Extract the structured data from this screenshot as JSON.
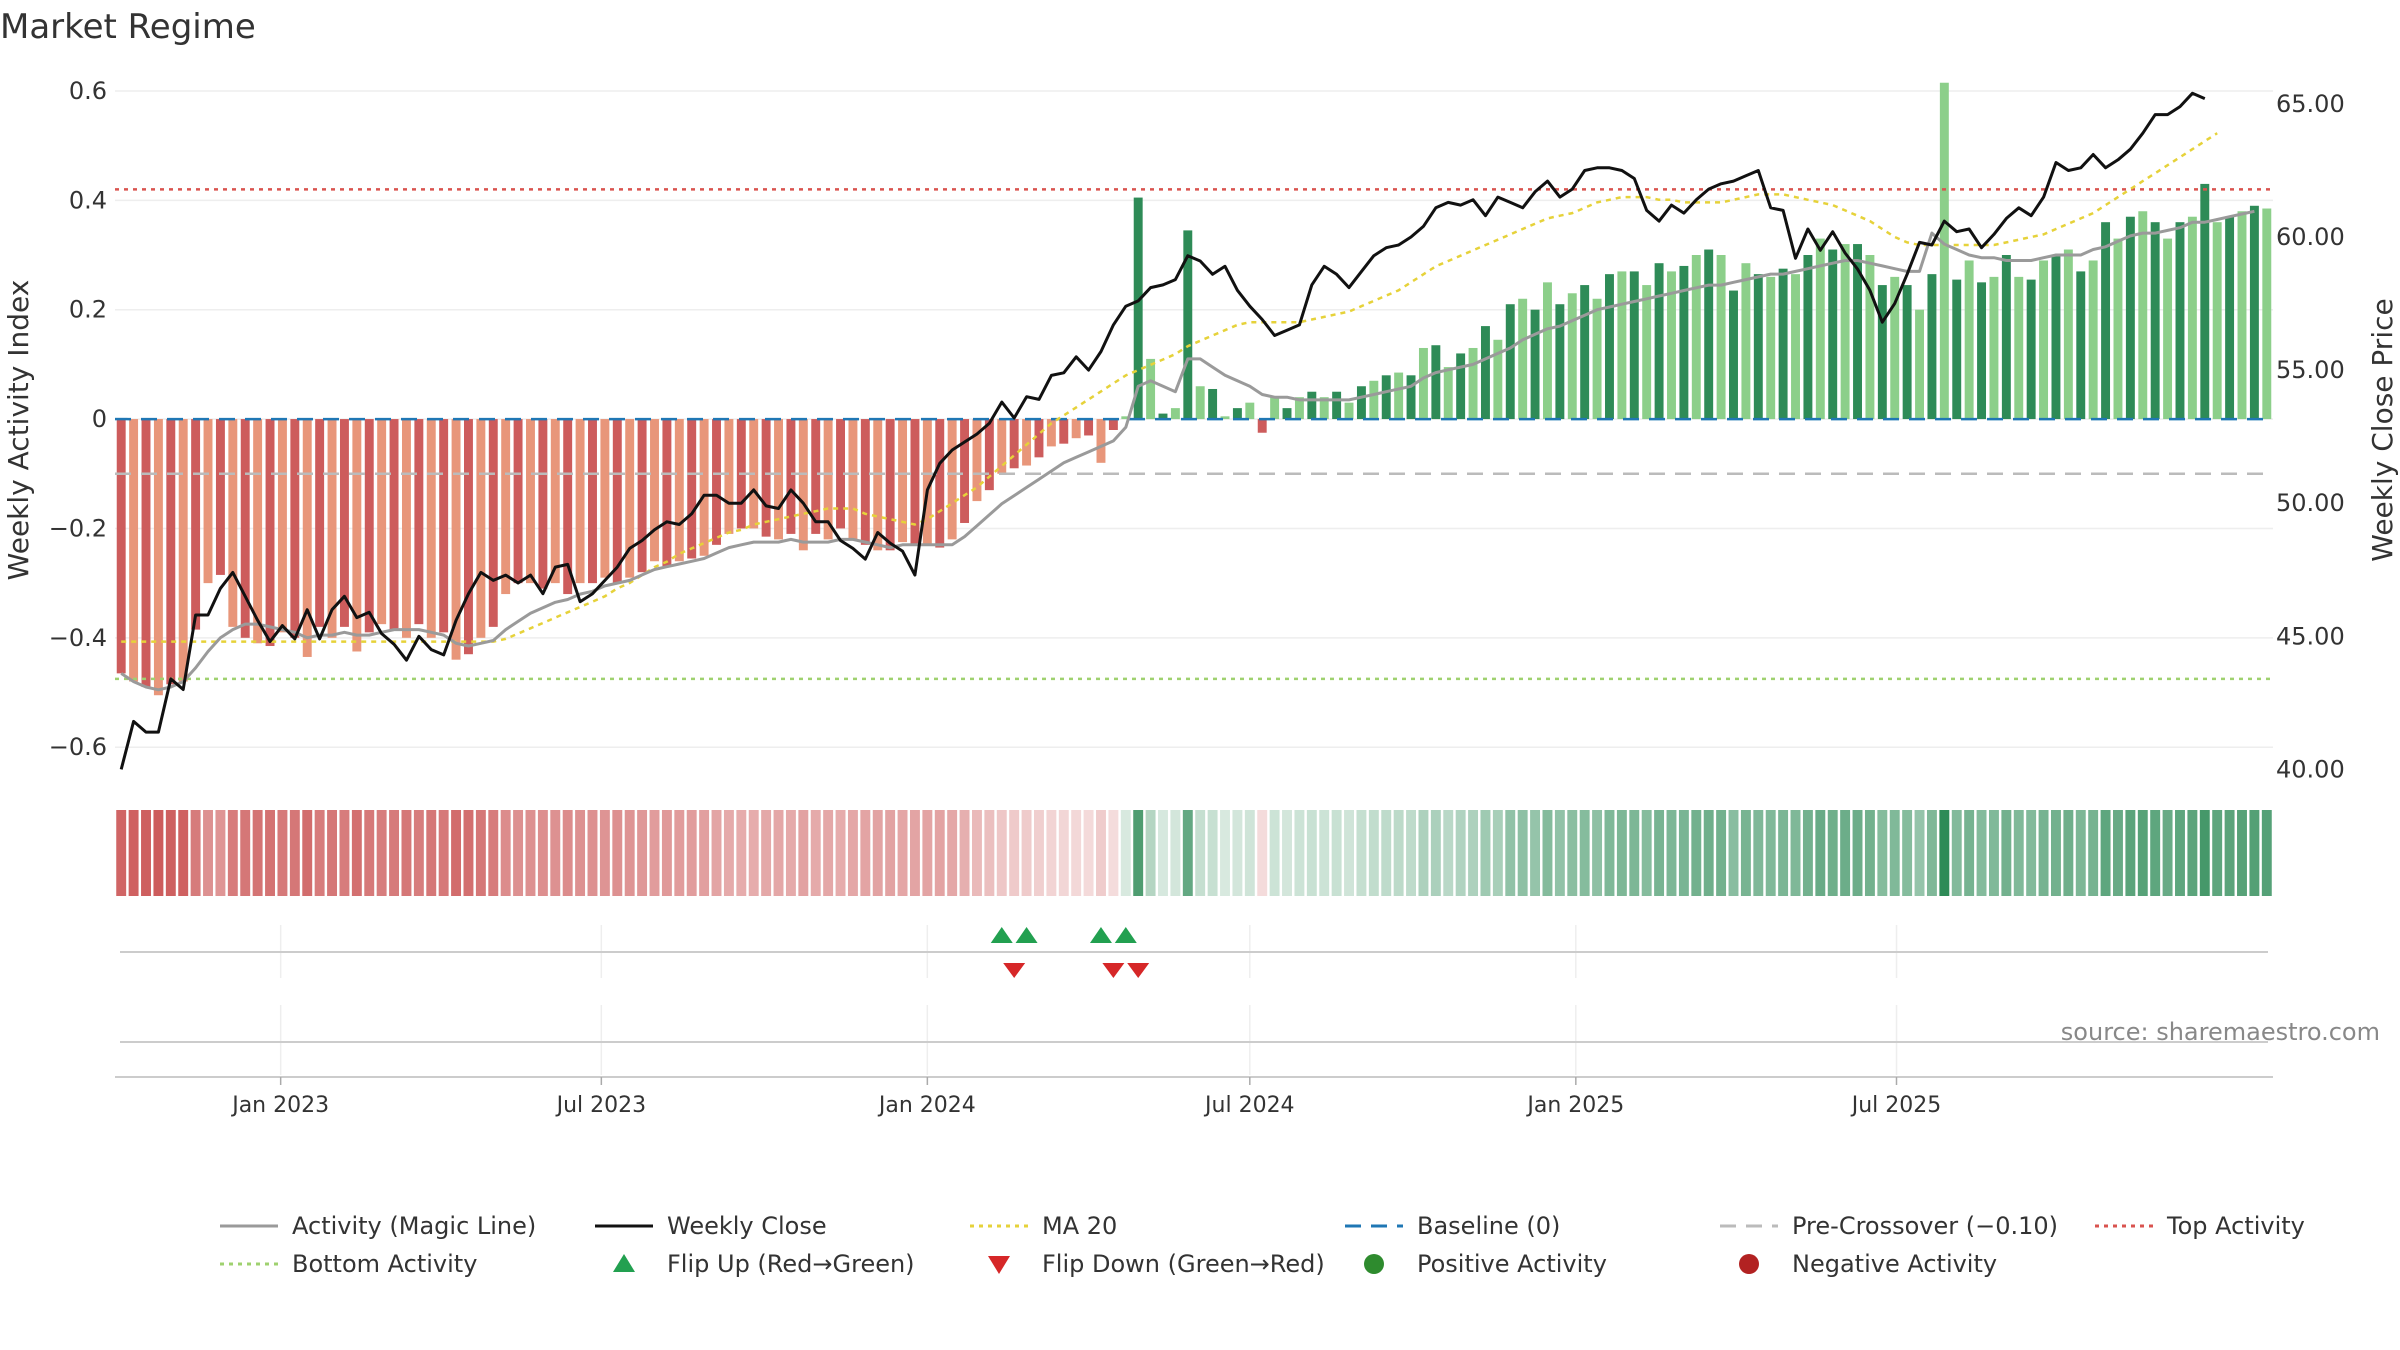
{
  "chart_data": {
    "type": "bar",
    "title": "Market Regime",
    "ylabel_left": "Weekly Activity Index",
    "ylabel_right": "Weekly Close Price",
    "source_note": "source: sharemaestro.com",
    "left_axis": {
      "ylim": [
        -0.66,
        0.62
      ],
      "ticks": [
        -0.6,
        -0.4,
        -0.2,
        0,
        0.2,
        0.4,
        0.6
      ],
      "tick_labels": [
        "−0.6",
        "−0.4",
        "−0.2",
        "0",
        "0.2",
        "0.4",
        "0.6"
      ]
    },
    "right_axis": {
      "ylim": [
        39.6,
        65.9
      ],
      "ticks": [
        40,
        45,
        50,
        55,
        60,
        65
      ],
      "tick_labels": [
        "40.00",
        "45.00",
        "50.00",
        "55.00",
        "60.00",
        "65.00"
      ]
    },
    "x_axis": {
      "start": "2022-10-03",
      "end": "2025-09-29",
      "ticks": [
        {
          "date": "2023-01-01",
          "label": "Jan 2023"
        },
        {
          "date": "2023-07-01",
          "label": "Jul 2023"
        },
        {
          "date": "2024-01-01",
          "label": "Jan 2024"
        },
        {
          "date": "2024-07-01",
          "label": "Jul 2024"
        },
        {
          "date": "2025-01-01",
          "label": "Jan 2025"
        },
        {
          "date": "2025-07-01",
          "label": "Jul 2025"
        }
      ]
    },
    "reference_lines": [
      {
        "name": "Baseline (0)",
        "value": 0,
        "color": "#1f77b4",
        "style": "dashed-long"
      },
      {
        "name": "Pre-Crossover (−0.10)",
        "value": -0.1,
        "color": "#bbbbbb",
        "style": "dashed-long"
      },
      {
        "name": "Top Activity",
        "value": 0.42,
        "color": "#d9534f",
        "style": "dotted"
      },
      {
        "name": "Bottom Activity",
        "value": -0.475,
        "color": "#9fd16f",
        "style": "dotted"
      }
    ],
    "activity_index": [
      -0.465,
      -0.48,
      -0.49,
      -0.505,
      -0.485,
      -0.48,
      -0.385,
      -0.3,
      -0.285,
      -0.38,
      -0.4,
      -0.41,
      -0.415,
      -0.39,
      -0.4,
      -0.435,
      -0.38,
      -0.4,
      -0.38,
      -0.425,
      -0.39,
      -0.375,
      -0.385,
      -0.4,
      -0.375,
      -0.4,
      -0.39,
      -0.44,
      -0.43,
      -0.4,
      -0.38,
      -0.32,
      -0.3,
      -0.3,
      -0.31,
      -0.3,
      -0.32,
      -0.3,
      -0.3,
      -0.29,
      -0.3,
      -0.29,
      -0.28,
      -0.26,
      -0.27,
      -0.26,
      -0.255,
      -0.25,
      -0.23,
      -0.21,
      -0.2,
      -0.2,
      -0.215,
      -0.22,
      -0.21,
      -0.24,
      -0.21,
      -0.22,
      -0.2,
      -0.22,
      -0.23,
      -0.24,
      -0.24,
      -0.225,
      -0.23,
      -0.23,
      -0.235,
      -0.22,
      -0.19,
      -0.15,
      -0.13,
      -0.1,
      -0.09,
      -0.085,
      -0.07,
      -0.05,
      -0.045,
      -0.035,
      -0.03,
      -0.08,
      -0.02,
      0.005,
      0.405,
      0.11,
      0.01,
      0.02,
      0.345,
      0.06,
      0.055,
      0.005,
      0.02,
      0.03,
      -0.025,
      0.04,
      0.02,
      0.04,
      0.05,
      0.04,
      0.05,
      0.03,
      0.06,
      0.07,
      0.08,
      0.085,
      0.08,
      0.13,
      0.135,
      0.095,
      0.12,
      0.13,
      0.17,
      0.145,
      0.21,
      0.22,
      0.2,
      0.25,
      0.21,
      0.23,
      0.245,
      0.22,
      0.265,
      0.27,
      0.27,
      0.245,
      0.285,
      0.27,
      0.28,
      0.3,
      0.31,
      0.3,
      0.235,
      0.285,
      0.265,
      0.26,
      0.275,
      0.265,
      0.3,
      0.33,
      0.31,
      0.32,
      0.32,
      0.3,
      0.245,
      0.26,
      0.245,
      0.2,
      0.265,
      0.615,
      0.255,
      0.29,
      0.25,
      0.26,
      0.3,
      0.26,
      0.255,
      0.29,
      0.3,
      0.31,
      0.27,
      0.29,
      0.36,
      0.33,
      0.37,
      0.38,
      0.36,
      0.33,
      0.36,
      0.37,
      0.43,
      0.36,
      0.37,
      0.38,
      0.39,
      0.385
    ],
    "activity_magic_line": [
      -0.465,
      -0.48,
      -0.49,
      -0.495,
      -0.49,
      -0.48,
      -0.455,
      -0.425,
      -0.4,
      -0.385,
      -0.375,
      -0.375,
      -0.38,
      -0.385,
      -0.39,
      -0.4,
      -0.395,
      -0.395,
      -0.39,
      -0.395,
      -0.395,
      -0.39,
      -0.385,
      -0.385,
      -0.385,
      -0.39,
      -0.395,
      -0.41,
      -0.415,
      -0.41,
      -0.405,
      -0.385,
      -0.37,
      -0.355,
      -0.345,
      -0.335,
      -0.33,
      -0.32,
      -0.315,
      -0.305,
      -0.3,
      -0.295,
      -0.285,
      -0.275,
      -0.27,
      -0.265,
      -0.26,
      -0.255,
      -0.245,
      -0.235,
      -0.23,
      -0.225,
      -0.225,
      -0.225,
      -0.22,
      -0.225,
      -0.225,
      -0.225,
      -0.22,
      -0.22,
      -0.225,
      -0.23,
      -0.235,
      -0.23,
      -0.23,
      -0.23,
      -0.23,
      -0.23,
      -0.215,
      -0.195,
      -0.175,
      -0.155,
      -0.14,
      -0.125,
      -0.11,
      -0.095,
      -0.08,
      -0.07,
      -0.06,
      -0.05,
      -0.04,
      -0.015,
      0.06,
      0.07,
      0.06,
      0.05,
      0.11,
      0.11,
      0.095,
      0.08,
      0.07,
      0.06,
      0.045,
      0.04,
      0.04,
      0.035,
      0.035,
      0.035,
      0.035,
      0.035,
      0.04,
      0.045,
      0.05,
      0.055,
      0.06,
      0.075,
      0.085,
      0.09,
      0.095,
      0.1,
      0.11,
      0.12,
      0.13,
      0.145,
      0.155,
      0.165,
      0.17,
      0.18,
      0.19,
      0.2,
      0.205,
      0.21,
      0.215,
      0.22,
      0.225,
      0.23,
      0.235,
      0.24,
      0.245,
      0.245,
      0.25,
      0.255,
      0.26,
      0.265,
      0.265,
      0.27,
      0.275,
      0.28,
      0.285,
      0.29,
      0.29,
      0.285,
      0.28,
      0.275,
      0.27,
      0.27,
      0.34,
      0.32,
      0.31,
      0.3,
      0.295,
      0.295,
      0.29,
      0.29,
      0.29,
      0.295,
      0.3,
      0.3,
      0.3,
      0.31,
      0.315,
      0.325,
      0.335,
      0.34,
      0.34,
      0.345,
      0.35,
      0.36,
      0.36,
      0.365,
      0.37,
      0.375,
      0.38
    ],
    "weekly_close": [
      40.0,
      41.8,
      41.4,
      41.4,
      43.4,
      43.0,
      45.8,
      45.8,
      46.8,
      47.4,
      46.5,
      45.6,
      44.8,
      45.4,
      44.9,
      46.0,
      44.9,
      46.0,
      46.5,
      45.7,
      45.9,
      45.1,
      44.7,
      44.1,
      45.0,
      44.5,
      44.3,
      45.6,
      46.6,
      47.4,
      47.1,
      47.3,
      47.0,
      47.3,
      46.6,
      47.6,
      47.7,
      46.3,
      46.6,
      47.1,
      47.6,
      48.3,
      48.6,
      49.0,
      49.3,
      49.2,
      49.6,
      50.3,
      50.3,
      50.0,
      50.0,
      50.5,
      49.9,
      49.8,
      50.5,
      50.0,
      49.3,
      49.3,
      48.6,
      48.3,
      47.9,
      48.9,
      48.5,
      48.2,
      47.3,
      50.5,
      51.5,
      52.0,
      52.3,
      52.6,
      53.0,
      53.8,
      53.2,
      54.0,
      53.9,
      54.8,
      54.9,
      55.5,
      55.0,
      55.7,
      56.7,
      57.4,
      57.6,
      58.1,
      58.2,
      58.4,
      59.3,
      59.1,
      58.6,
      58.9,
      58.0,
      57.4,
      56.9,
      56.3,
      56.5,
      56.7,
      58.2,
      58.9,
      58.6,
      58.1,
      58.7,
      59.3,
      59.6,
      59.7,
      60.0,
      60.4,
      61.1,
      61.3,
      61.2,
      61.4,
      60.8,
      61.5,
      61.3,
      61.1,
      61.7,
      62.1,
      61.5,
      61.8,
      62.5,
      62.6,
      62.6,
      62.5,
      62.2,
      61.0,
      60.6,
      61.2,
      60.9,
      61.4,
      61.8,
      62.0,
      62.1,
      62.3,
      62.5,
      61.1,
      61.0,
      59.2,
      60.3,
      59.5,
      60.2,
      59.4,
      58.8,
      58.0,
      56.8,
      57.5,
      58.6,
      59.8,
      59.7,
      60.6,
      60.2,
      60.3,
      59.6,
      60.1,
      60.7,
      61.1,
      60.8,
      61.5,
      62.8,
      62.5,
      62.6,
      63.1,
      62.6,
      62.9,
      63.3,
      63.9,
      64.6,
      64.6,
      64.9,
      65.4,
      65.2
    ],
    "ma20": [
      44.8,
      44.8,
      44.8,
      44.8,
      44.8,
      44.8,
      44.8,
      44.8,
      44.8,
      44.8,
      44.8,
      44.8,
      44.8,
      44.8,
      44.8,
      44.8,
      44.8,
      44.8,
      44.8,
      44.8,
      44.8,
      44.8,
      44.8,
      44.8,
      44.8,
      44.8,
      44.8,
      44.8,
      44.8,
      44.8,
      44.8,
      44.9,
      45.1,
      45.3,
      45.5,
      45.7,
      45.9,
      46.1,
      46.3,
      46.5,
      46.8,
      47.0,
      47.3,
      47.6,
      47.8,
      48.1,
      48.3,
      48.5,
      48.7,
      48.9,
      49.0,
      49.2,
      49.3,
      49.4,
      49.5,
      49.6,
      49.7,
      49.8,
      49.8,
      49.8,
      49.6,
      49.5,
      49.4,
      49.3,
      49.2,
      49.4,
      49.7,
      50.0,
      50.3,
      50.6,
      51.0,
      51.4,
      51.8,
      52.2,
      52.6,
      53.0,
      53.3,
      53.6,
      53.9,
      54.2,
      54.5,
      54.8,
      55.0,
      55.2,
      55.4,
      55.6,
      55.9,
      56.1,
      56.3,
      56.5,
      56.7,
      56.8,
      56.8,
      56.8,
      56.8,
      56.8,
      56.9,
      57.0,
      57.1,
      57.2,
      57.4,
      57.6,
      57.8,
      58.0,
      58.3,
      58.6,
      58.9,
      59.1,
      59.3,
      59.5,
      59.7,
      59.9,
      60.1,
      60.3,
      60.5,
      60.7,
      60.8,
      60.9,
      61.1,
      61.3,
      61.4,
      61.5,
      61.5,
      61.5,
      61.4,
      61.4,
      61.3,
      61.3,
      61.3,
      61.3,
      61.4,
      61.5,
      61.6,
      61.6,
      61.6,
      61.5,
      61.4,
      61.3,
      61.2,
      61.0,
      60.8,
      60.6,
      60.3,
      60.0,
      59.8,
      59.7,
      59.7,
      59.7,
      59.7,
      59.7,
      59.7,
      59.7,
      59.8,
      59.9,
      60.0,
      60.1,
      60.3,
      60.5,
      60.7,
      60.9,
      61.2,
      61.5,
      61.8,
      62.1,
      62.4,
      62.7,
      63.0,
      63.3,
      63.6,
      63.9
    ],
    "flip_up": [
      "2024-02-12",
      "2024-02-26",
      "2024-04-08",
      "2024-04-22"
    ],
    "flip_down": [
      "2024-02-19",
      "2024-04-15",
      "2024-04-29"
    ],
    "colors": {
      "negative_dark": "#cd5c5c",
      "negative_light": "#e8967a",
      "positive_dark": "#2e8b57",
      "positive_light": "#8ccf8a",
      "magic_line": "#9a9a9a",
      "weekly_close": "#111111",
      "ma20": "#e6d23a",
      "flip_up": "#22a050",
      "flip_down": "#d62728",
      "positive_activity": "#2e8b2e",
      "negative_activity": "#b22222"
    },
    "legend_placement": "bottom-center",
    "legend": [
      {
        "label": "Activity (Magic Line)",
        "kind": "line",
        "color": "#9a9a9a",
        "dash": ""
      },
      {
        "label": "Weekly Close",
        "kind": "line",
        "color": "#111111",
        "dash": ""
      },
      {
        "label": "MA 20",
        "kind": "line",
        "color": "#e6d23a",
        "dash": "dotted"
      },
      {
        "label": "Baseline (0)",
        "kind": "line",
        "color": "#1f77b4",
        "dash": "dashed"
      },
      {
        "label": "Pre-Crossover (−0.10)",
        "kind": "line",
        "color": "#bbbbbb",
        "dash": "dashed"
      },
      {
        "label": "Top Activity",
        "kind": "line",
        "color": "#d9534f",
        "dash": "dotted"
      },
      {
        "label": "Bottom Activity",
        "kind": "line",
        "color": "#9fd16f",
        "dash": "dotted"
      },
      {
        "label": "Flip Up (Red→Green)",
        "kind": "triangle-up",
        "color": "#22a050",
        "dash": ""
      },
      {
        "label": "Flip Down (Green→Red)",
        "kind": "triangle-down",
        "color": "#d62728",
        "dash": ""
      },
      {
        "label": "Positive Activity",
        "kind": "dot",
        "color": "#2e8b2e",
        "dash": ""
      },
      {
        "label": "Negative Activity",
        "kind": "dot",
        "color": "#b22222",
        "dash": ""
      }
    ]
  }
}
